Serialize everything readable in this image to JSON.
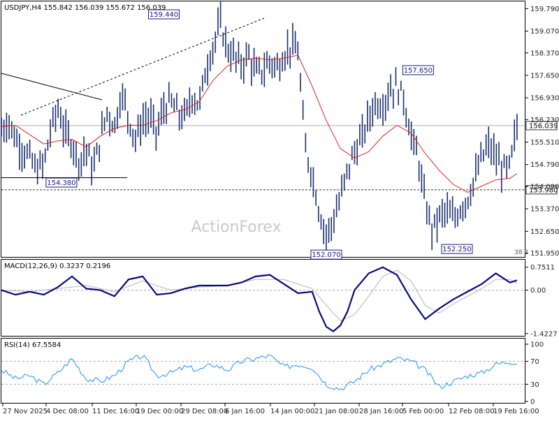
{
  "header": {
    "symbol_line": "USDJPY,H4  155.842 156.039 155.672 156.039"
  },
  "watermark": "ActionForex",
  "colors": {
    "price_bar": "#1a2f6e",
    "ma_line": "#dd2222",
    "macd_line": "#0a0a7a",
    "signal_line": "#b5b5b5",
    "rsi_line": "#1e90ff"
  },
  "chart_data": [
    {
      "type": "line",
      "title": "USDJPY,H4",
      "ohlc_text": "155.842 156.039 155.672 156.039",
      "x_ticks": [
        "27 Nov 2025",
        "4 Dec 08:00",
        "11 Dec 16:00",
        "19 Dec 00:00",
        "29 Dec 08:00",
        "6 Jan 16:00",
        "14 Jan 00:00",
        "21 Jan 08:00",
        "28 Jan 16:00",
        "5 Feb 00:00",
        "12 Feb 08:00",
        "19 Feb 16:00"
      ],
      "y_ticks": [
        "159.790",
        "159.070",
        "158.370",
        "157.650",
        "156.930",
        "156.230",
        "155.510",
        "154.790",
        "154.090",
        "153.370",
        "152.650",
        "151.950"
      ],
      "ylim": [
        151.85,
        160.0
      ],
      "current_price": "156.039",
      "current_price_value": 156.039,
      "horizontal_level": {
        "value": 153.98,
        "label": "153.980"
      },
      "fib_label": "38.2",
      "annotations": [
        {
          "label": "159.440",
          "value": 159.44,
          "x": 46
        },
        {
          "label": "157.650",
          "value": 157.65,
          "x": 118
        },
        {
          "label": "154.380",
          "value": 154.38,
          "x": 17
        },
        {
          "label": "152.070",
          "value": 152.07,
          "x": 92
        },
        {
          "label": "152.250",
          "value": 152.25,
          "x": 129
        }
      ],
      "series": [
        {
          "name": "",
          "x": [
            0,
            2,
            4,
            6,
            8,
            10,
            12,
            14,
            16,
            18,
            20,
            22,
            24,
            26,
            28,
            30,
            32,
            34,
            36,
            38,
            40,
            42,
            44,
            46,
            48,
            50,
            52,
            54,
            56,
            58,
            60,
            62,
            64,
            66,
            68,
            70,
            72,
            74,
            76,
            78,
            80,
            82,
            84,
            86,
            88,
            90,
            92,
            94,
            96,
            98,
            100,
            102,
            104,
            106,
            108,
            110,
            112,
            114,
            116,
            118,
            120,
            122,
            124,
            126,
            128,
            130,
            132,
            134,
            136,
            138,
            140,
            142,
            144,
            146
          ],
          "values": [
            155.9,
            156.2,
            155.6,
            155.3,
            155.0,
            154.6,
            154.8,
            155.9,
            156.6,
            155.8,
            155.5,
            154.9,
            155.3,
            154.6,
            155.6,
            156.5,
            156.0,
            157.1,
            156.3,
            155.6,
            156.2,
            156.3,
            155.8,
            156.6,
            156.8,
            156.4,
            156.3,
            157.0,
            156.7,
            157.9,
            158.6,
            159.3,
            158.5,
            158.2,
            158.0,
            158.3,
            157.7,
            157.8,
            158.1,
            157.9,
            158.3,
            158.6,
            158.4,
            155.3,
            154.5,
            153.3,
            152.5,
            153.0,
            153.7,
            154.6,
            155.2,
            155.6,
            156.3,
            156.8,
            156.7,
            157.2,
            157.3,
            156.9,
            155.7,
            155.0,
            153.5,
            152.7,
            153.1,
            153.3,
            153.0,
            153.4,
            153.7,
            154.3,
            155.0,
            155.4,
            155.0,
            154.6,
            154.7,
            156.04
          ]
        },
        {
          "name": "",
          "x": [
            0,
            4,
            8,
            12,
            16,
            20,
            24,
            28,
            32,
            36,
            40,
            44,
            48,
            52,
            56,
            60,
            64,
            68,
            72,
            76,
            80,
            84,
            88,
            92,
            96,
            100,
            104,
            108,
            112,
            116,
            120,
            124,
            128,
            132,
            136,
            140,
            144,
            146
          ],
          "values": [
            156.0,
            156.05,
            155.75,
            155.45,
            155.55,
            155.6,
            155.35,
            155.7,
            155.95,
            156.05,
            156.05,
            156.2,
            156.45,
            156.55,
            156.8,
            157.5,
            157.95,
            158.15,
            158.2,
            158.15,
            158.2,
            158.3,
            157.3,
            156.2,
            155.3,
            155.0,
            155.2,
            155.7,
            156.05,
            155.8,
            155.15,
            154.6,
            154.15,
            153.9,
            154.1,
            154.3,
            154.35,
            154.5
          ]
        }
      ]
    },
    {
      "type": "line",
      "title": "MACD(12,26,9) 0.3237 0.2196",
      "y_ticks": [
        "0.7511",
        "0.00",
        "-1.4227"
      ],
      "ylim": [
        -1.45,
        0.95
      ],
      "series": [
        {
          "name": "",
          "x": [
            0,
            4,
            8,
            12,
            16,
            20,
            24,
            28,
            32,
            36,
            40,
            44,
            48,
            52,
            56,
            60,
            64,
            68,
            72,
            76,
            80,
            84,
            88,
            90,
            92,
            94,
            96,
            98,
            100,
            104,
            108,
            112,
            116,
            120,
            124,
            128,
            132,
            136,
            140,
            142,
            144,
            146
          ],
          "values": [
            0.0,
            -0.15,
            -0.05,
            -0.15,
            0.1,
            0.45,
            0.05,
            0.0,
            -0.2,
            0.35,
            0.45,
            -0.15,
            -0.1,
            0.05,
            0.15,
            0.15,
            0.15,
            0.25,
            0.45,
            0.5,
            0.2,
            -0.1,
            -0.05,
            -0.7,
            -1.2,
            -1.35,
            -1.15,
            -0.7,
            0.0,
            0.55,
            0.75,
            0.5,
            -0.3,
            -0.95,
            -0.6,
            -0.3,
            -0.05,
            0.2,
            0.55,
            0.4,
            0.25,
            0.3237
          ]
        },
        {
          "name": "",
          "x": [
            0,
            8,
            16,
            24,
            32,
            40,
            48,
            56,
            64,
            72,
            80,
            88,
            92,
            96,
            100,
            104,
            108,
            112,
            116,
            120,
            124,
            128,
            132,
            136,
            140,
            144,
            146
          ],
          "values": [
            0.0,
            -0.05,
            0.05,
            0.15,
            -0.05,
            0.3,
            0.0,
            0.1,
            0.15,
            0.35,
            0.35,
            0.05,
            -0.5,
            -1.0,
            -0.8,
            -0.2,
            0.45,
            0.65,
            0.3,
            -0.5,
            -0.75,
            -0.45,
            -0.2,
            0.05,
            0.35,
            0.35,
            0.2196
          ]
        }
      ]
    },
    {
      "type": "line",
      "title": "RSI(14) 67.5584",
      "y_ticks": [
        "100",
        "70",
        "30",
        "0"
      ],
      "ylim": [
        0,
        100
      ],
      "reference_lines": [
        70,
        30
      ],
      "series": [
        {
          "name": "",
          "x": [
            0,
            4,
            8,
            12,
            16,
            20,
            24,
            28,
            32,
            36,
            40,
            44,
            48,
            52,
            56,
            60,
            64,
            68,
            72,
            76,
            80,
            84,
            88,
            92,
            96,
            100,
            104,
            108,
            112,
            116,
            120,
            124,
            128,
            132,
            136,
            140,
            144,
            146
          ],
          "values": [
            55,
            40,
            45,
            30,
            50,
            75,
            40,
            35,
            45,
            70,
            80,
            45,
            50,
            60,
            55,
            65,
            55,
            70,
            75,
            80,
            60,
            65,
            60,
            30,
            22,
            35,
            55,
            65,
            75,
            70,
            55,
            25,
            35,
            45,
            50,
            65,
            70,
            67.56
          ]
        }
      ]
    }
  ]
}
